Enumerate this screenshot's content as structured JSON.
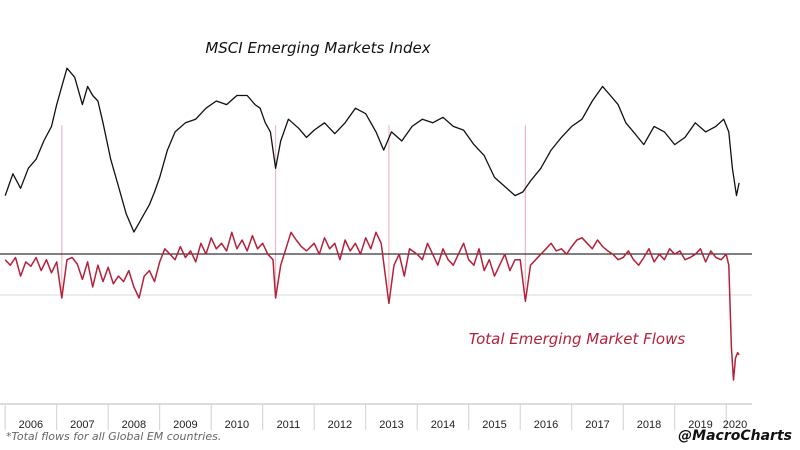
{
  "chart_data": {
    "type": "line",
    "title": "MSCI Emerging Markets Index",
    "flows_label": "Total Emerging Market Flows",
    "footnote": "*Total flows for all Global EM countries.",
    "credit": "@MacroCharts",
    "x_ticks": [
      "2006",
      "2007",
      "2008",
      "2009",
      "2010",
      "2011",
      "2012",
      "2013",
      "2014",
      "2015",
      "2016",
      "2017",
      "2018",
      "2019",
      "2020"
    ],
    "xlim": [
      2005.9,
      2020.5
    ],
    "colors": {
      "index": "#111111",
      "flows": "#b5213b",
      "highlight": "#f2b8c1",
      "zero_line": "#000000",
      "grid": "#d9d9d9"
    },
    "index_ylim": [
      0,
      100
    ],
    "flows_ylim": [
      -100,
      60
    ],
    "highlight_years": [
      2007.1,
      2011.25,
      2013.45,
      2016.1
    ],
    "series": [
      {
        "name": "MSCI Emerging Markets Index",
        "x": [
          2006.0,
          2006.15,
          2006.3,
          2006.45,
          2006.6,
          2006.75,
          2006.9,
          2007.0,
          2007.1,
          2007.2,
          2007.35,
          2007.5,
          2007.6,
          2007.7,
          2007.8,
          2007.9,
          2008.05,
          2008.2,
          2008.35,
          2008.5,
          2008.6,
          2008.7,
          2008.8,
          2008.9,
          2009.0,
          2009.15,
          2009.3,
          2009.5,
          2009.7,
          2009.9,
          2010.1,
          2010.3,
          2010.5,
          2010.7,
          2010.85,
          2010.95,
          2011.05,
          2011.15,
          2011.25,
          2011.35,
          2011.5,
          2011.7,
          2011.85,
          2012.0,
          2012.2,
          2012.4,
          2012.6,
          2012.8,
          2013.0,
          2013.2,
          2013.35,
          2013.5,
          2013.7,
          2013.9,
          2014.1,
          2014.3,
          2014.5,
          2014.7,
          2014.9,
          2015.1,
          2015.3,
          2015.5,
          2015.7,
          2015.9,
          2016.05,
          2016.2,
          2016.4,
          2016.6,
          2016.8,
          2017.0,
          2017.2,
          2017.4,
          2017.6,
          2017.75,
          2017.9,
          2018.05,
          2018.2,
          2018.4,
          2018.6,
          2018.8,
          2019.0,
          2019.2,
          2019.4,
          2019.6,
          2019.8,
          2019.95,
          2020.05,
          2020.12,
          2020.2,
          2020.25
        ],
        "values": [
          20,
          32,
          24,
          35,
          40,
          50,
          58,
          70,
          80,
          90,
          85,
          70,
          80,
          75,
          72,
          60,
          40,
          25,
          10,
          0,
          5,
          10,
          15,
          22,
          30,
          45,
          55,
          60,
          62,
          68,
          72,
          70,
          75,
          75,
          70,
          68,
          60,
          55,
          35,
          50,
          62,
          57,
          52,
          56,
          60,
          54,
          60,
          68,
          65,
          55,
          45,
          55,
          50,
          58,
          62,
          60,
          63,
          58,
          56,
          48,
          42,
          30,
          25,
          20,
          22,
          28,
          35,
          45,
          52,
          58,
          62,
          72,
          80,
          75,
          70,
          60,
          55,
          48,
          58,
          55,
          48,
          52,
          60,
          55,
          58,
          62,
          55,
          35,
          20,
          27
        ]
      },
      {
        "name": "Total Emerging Market Flows",
        "x": [
          2006.0,
          2006.1,
          2006.2,
          2006.3,
          2006.4,
          2006.5,
          2006.6,
          2006.7,
          2006.8,
          2006.9,
          2007.0,
          2007.1,
          2007.2,
          2007.3,
          2007.4,
          2007.5,
          2007.6,
          2007.7,
          2007.8,
          2007.9,
          2008.0,
          2008.1,
          2008.2,
          2008.3,
          2008.4,
          2008.5,
          2008.6,
          2008.7,
          2008.8,
          2008.9,
          2009.0,
          2009.1,
          2009.2,
          2009.3,
          2009.4,
          2009.5,
          2009.6,
          2009.7,
          2009.8,
          2009.9,
          2010.0,
          2010.1,
          2010.2,
          2010.3,
          2010.4,
          2010.5,
          2010.6,
          2010.7,
          2010.8,
          2010.9,
          2011.0,
          2011.1,
          2011.2,
          2011.25,
          2011.35,
          2011.45,
          2011.55,
          2011.65,
          2011.75,
          2011.85,
          2012.0,
          2012.1,
          2012.2,
          2012.3,
          2012.4,
          2012.5,
          2012.6,
          2012.7,
          2012.8,
          2012.9,
          2013.0,
          2013.1,
          2013.2,
          2013.3,
          2013.45,
          2013.55,
          2013.65,
          2013.75,
          2013.85,
          2014.0,
          2014.1,
          2014.2,
          2014.3,
          2014.4,
          2014.5,
          2014.6,
          2014.7,
          2014.8,
          2014.9,
          2015.0,
          2015.1,
          2015.2,
          2015.3,
          2015.4,
          2015.5,
          2015.6,
          2015.7,
          2015.8,
          2015.9,
          2016.0,
          2016.1,
          2016.2,
          2016.3,
          2016.4,
          2016.5,
          2016.6,
          2016.7,
          2016.8,
          2016.9,
          2017.0,
          2017.1,
          2017.2,
          2017.3,
          2017.4,
          2017.5,
          2017.6,
          2017.7,
          2017.8,
          2017.9,
          2018.0,
          2018.1,
          2018.2,
          2018.3,
          2018.4,
          2018.5,
          2018.6,
          2018.7,
          2018.8,
          2018.9,
          2019.0,
          2019.1,
          2019.2,
          2019.3,
          2019.4,
          2019.5,
          2019.6,
          2019.7,
          2019.8,
          2019.9,
          2020.0,
          2020.05,
          2020.1,
          2020.14,
          2020.18,
          2020.22,
          2020.25
        ],
        "values": [
          10,
          5,
          12,
          -5,
          8,
          4,
          12,
          0,
          10,
          -2,
          8,
          -25,
          10,
          12,
          6,
          -8,
          8,
          -15,
          5,
          -10,
          3,
          -12,
          -5,
          -10,
          0,
          -15,
          -25,
          -5,
          0,
          -10,
          8,
          20,
          15,
          10,
          22,
          12,
          18,
          8,
          25,
          15,
          30,
          20,
          25,
          18,
          35,
          20,
          28,
          18,
          32,
          20,
          25,
          15,
          10,
          -25,
          5,
          20,
          35,
          28,
          22,
          18,
          25,
          15,
          30,
          20,
          25,
          10,
          28,
          18,
          25,
          15,
          30,
          20,
          35,
          25,
          -30,
          5,
          15,
          -5,
          20,
          15,
          10,
          25,
          15,
          5,
          20,
          10,
          5,
          15,
          25,
          10,
          5,
          20,
          0,
          10,
          -5,
          5,
          15,
          0,
          10,
          10,
          -28,
          5,
          10,
          15,
          20,
          25,
          18,
          20,
          15,
          22,
          28,
          30,
          25,
          20,
          28,
          22,
          18,
          15,
          10,
          12,
          18,
          10,
          5,
          12,
          20,
          8,
          15,
          10,
          20,
          15,
          18,
          10,
          12,
          15,
          20,
          8,
          18,
          12,
          10,
          15,
          5,
          -70,
          -100,
          -80,
          -75,
          -77
        ]
      }
    ]
  }
}
